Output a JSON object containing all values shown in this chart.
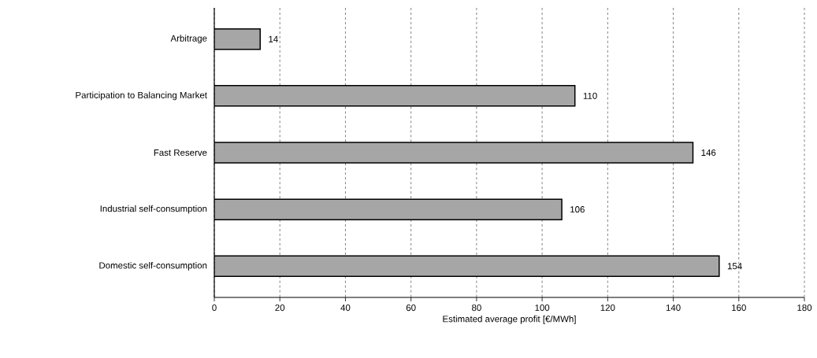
{
  "chart_data": {
    "type": "bar",
    "orientation": "horizontal",
    "categories": [
      "Arbitrage",
      "Participation to Balancing Market",
      "Fast Reserve",
      "Industrial self-consumption",
      "Domestic self-consumption"
    ],
    "values": [
      14,
      110,
      146,
      106,
      154
    ],
    "color": "#a6a6a6",
    "xlabel": "Estimated average profit [€/MWh]",
    "xlim": [
      0,
      180
    ],
    "xticks": [
      0,
      20,
      40,
      60,
      80,
      100,
      120,
      140,
      160,
      180
    ],
    "grid": "x",
    "data_labels": true
  }
}
